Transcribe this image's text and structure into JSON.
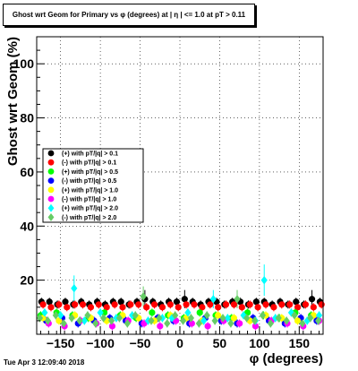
{
  "title": "Ghost wrt Geom for Primary vs φ (degrees) at | η | <= 1.0 at pT > 0.11",
  "timestamp": "Tue Apr  3 12:09:40 2018",
  "colors": {
    "black": "#000000",
    "red": "#ff0000",
    "green": "#00ff00",
    "blue": "#0000ff",
    "yellow": "#ffff00",
    "magenta": "#ff00ff",
    "cyan": "#00ffff",
    "lightgreen": "#66cc66"
  },
  "chart_data": {
    "type": "scatter",
    "xlabel": "φ (degrees)",
    "ylabel": "Ghost wrt Geom (%)",
    "xlim": [
      -180,
      180
    ],
    "ylim": [
      0,
      110
    ],
    "xticks": [
      -150,
      -100,
      -50,
      0,
      50,
      100,
      150
    ],
    "yticks": [
      20,
      40,
      60,
      80,
      100
    ],
    "grid": true,
    "legend_position": "middle-left",
    "series": [
      {
        "name": "(+) with pT/|q| > 0.1",
        "color": "#000000",
        "marker": "circle",
        "points": [
          [
            -174,
            12
          ],
          [
            -164,
            12
          ],
          [
            -154,
            11
          ],
          [
            -144,
            12
          ],
          [
            -134,
            11
          ],
          [
            -124,
            12
          ],
          [
            -114,
            11
          ],
          [
            -104,
            12
          ],
          [
            -94,
            11
          ],
          [
            -84,
            12
          ],
          [
            -74,
            12
          ],
          [
            -64,
            11
          ],
          [
            -54,
            12
          ],
          [
            -44,
            13
          ],
          [
            -34,
            12
          ],
          [
            -24,
            11
          ],
          [
            -14,
            12
          ],
          [
            -4,
            12
          ],
          [
            6,
            13
          ],
          [
            16,
            12
          ],
          [
            26,
            11
          ],
          [
            36,
            12
          ],
          [
            46,
            12
          ],
          [
            56,
            11
          ],
          [
            66,
            12
          ],
          [
            76,
            12
          ],
          [
            86,
            11
          ],
          [
            96,
            12
          ],
          [
            106,
            12
          ],
          [
            116,
            11
          ],
          [
            126,
            12
          ],
          [
            136,
            11
          ],
          [
            146,
            12
          ],
          [
            156,
            11
          ],
          [
            166,
            13
          ],
          [
            176,
            12
          ]
        ]
      },
      {
        "name": "(-) with pT/|q| > 0.1",
        "color": "#ff0000",
        "marker": "circle",
        "points": [
          [
            -172,
            11
          ],
          [
            -162,
            10
          ],
          [
            -152,
            11
          ],
          [
            -142,
            10
          ],
          [
            -132,
            11
          ],
          [
            -122,
            11
          ],
          [
            -112,
            10
          ],
          [
            -102,
            11
          ],
          [
            -92,
            10
          ],
          [
            -82,
            11
          ],
          [
            -72,
            10
          ],
          [
            -62,
            11
          ],
          [
            -52,
            11
          ],
          [
            -42,
            10
          ],
          [
            -32,
            11
          ],
          [
            -22,
            10
          ],
          [
            -12,
            11
          ],
          [
            -2,
            10
          ],
          [
            8,
            11
          ],
          [
            18,
            11
          ],
          [
            28,
            10
          ],
          [
            38,
            11
          ],
          [
            48,
            10
          ],
          [
            58,
            11
          ],
          [
            68,
            11
          ],
          [
            78,
            10
          ],
          [
            88,
            11
          ],
          [
            98,
            10
          ],
          [
            108,
            11
          ],
          [
            118,
            10
          ],
          [
            128,
            11
          ],
          [
            138,
            11
          ],
          [
            148,
            10
          ],
          [
            158,
            11
          ],
          [
            168,
            10
          ],
          [
            178,
            11
          ]
        ]
      },
      {
        "name": "(+) with pT/|q| > 0.5",
        "color": "#00ff00",
        "marker": "circle",
        "points": [
          [
            -175,
            7
          ],
          [
            -155,
            8
          ],
          [
            -135,
            7
          ],
          [
            -115,
            6
          ],
          [
            -95,
            8
          ],
          [
            -75,
            7
          ],
          [
            -55,
            6
          ],
          [
            -35,
            8
          ],
          [
            -15,
            7
          ],
          [
            5,
            6
          ],
          [
            25,
            8
          ],
          [
            45,
            7
          ],
          [
            65,
            6
          ],
          [
            85,
            8
          ],
          [
            105,
            7
          ],
          [
            125,
            6
          ],
          [
            145,
            8
          ],
          [
            165,
            7
          ]
        ]
      },
      {
        "name": "(-) with pT/|q| > 0.5",
        "color": "#0000ff",
        "marker": "circle",
        "points": [
          [
            -168,
            5
          ],
          [
            -148,
            6
          ],
          [
            -128,
            4
          ],
          [
            -108,
            5
          ],
          [
            -88,
            6
          ],
          [
            -68,
            5
          ],
          [
            -48,
            4
          ],
          [
            -28,
            6
          ],
          [
            -8,
            5
          ],
          [
            12,
            4
          ],
          [
            32,
            6
          ],
          [
            52,
            5
          ],
          [
            72,
            4
          ],
          [
            92,
            6
          ],
          [
            112,
            5
          ],
          [
            132,
            4
          ],
          [
            152,
            6
          ],
          [
            172,
            5
          ]
        ]
      },
      {
        "name": "(+) with pT/|q| > 1.0",
        "color": "#ffff00",
        "marker": "circle",
        "points": [
          [
            -172,
            6
          ],
          [
            -152,
            5
          ],
          [
            -132,
            7
          ],
          [
            -112,
            6
          ],
          [
            -92,
            5
          ],
          [
            -72,
            7
          ],
          [
            -52,
            6
          ],
          [
            -32,
            5
          ],
          [
            -12,
            7
          ],
          [
            8,
            6
          ],
          [
            28,
            5
          ],
          [
            48,
            7
          ],
          [
            68,
            6
          ],
          [
            88,
            5
          ],
          [
            108,
            7
          ],
          [
            128,
            6
          ],
          [
            148,
            5
          ],
          [
            168,
            7
          ]
        ]
      },
      {
        "name": "(-) with pT/|q| > 1.0",
        "color": "#ff00ff",
        "marker": "circle",
        "points": [
          [
            -165,
            4
          ],
          [
            -145,
            3
          ],
          [
            -125,
            5
          ],
          [
            -105,
            4
          ],
          [
            -85,
            3
          ],
          [
            -65,
            5
          ],
          [
            -45,
            4
          ],
          [
            -25,
            3
          ],
          [
            -5,
            5
          ],
          [
            15,
            4
          ],
          [
            35,
            3
          ],
          [
            55,
            5
          ],
          [
            75,
            4
          ],
          [
            95,
            3
          ],
          [
            115,
            5
          ],
          [
            135,
            4
          ],
          [
            155,
            3
          ],
          [
            175,
            5
          ]
        ]
      },
      {
        "name": "(+) with pT/|q| > 2.0",
        "color": "#00ffff",
        "marker": "diamond",
        "points": [
          [
            -170,
            8
          ],
          [
            -150,
            7
          ],
          [
            -133,
            17
          ],
          [
            -120,
            5
          ],
          [
            -100,
            8
          ],
          [
            -80,
            6
          ],
          [
            -60,
            7
          ],
          [
            -40,
            5
          ],
          [
            -22,
            6
          ],
          [
            -10,
            6
          ],
          [
            10,
            8
          ],
          [
            30,
            5
          ],
          [
            42,
            13
          ],
          [
            60,
            6
          ],
          [
            80,
            7
          ],
          [
            95,
            5
          ],
          [
            106,
            20
          ],
          [
            120,
            6
          ],
          [
            140,
            8
          ],
          [
            160,
            5
          ],
          [
            175,
            7
          ]
        ]
      },
      {
        "name": "(-) with pT/|q| > 2.0",
        "color": "#66cc66",
        "marker": "diamond",
        "points": [
          [
            -176,
            6
          ],
          [
            -166,
            5
          ],
          [
            -156,
            7
          ],
          [
            -146,
            4
          ],
          [
            -136,
            6
          ],
          [
            -126,
            5
          ],
          [
            -116,
            7
          ],
          [
            -106,
            4
          ],
          [
            -96,
            6
          ],
          [
            -86,
            5
          ],
          [
            -76,
            6
          ],
          [
            -66,
            4
          ],
          [
            -56,
            7
          ],
          [
            -46,
            14
          ],
          [
            -36,
            5
          ],
          [
            -26,
            6
          ],
          [
            -16,
            4
          ],
          [
            -6,
            7
          ],
          [
            4,
            5
          ],
          [
            14,
            6
          ],
          [
            24,
            4
          ],
          [
            34,
            7
          ],
          [
            44,
            5
          ],
          [
            54,
            6
          ],
          [
            64,
            4
          ],
          [
            72,
            13
          ],
          [
            84,
            6
          ],
          [
            94,
            5
          ],
          [
            104,
            7
          ],
          [
            114,
            4
          ],
          [
            124,
            6
          ],
          [
            134,
            5
          ],
          [
            144,
            7
          ],
          [
            154,
            4
          ],
          [
            164,
            6
          ],
          [
            174,
            5
          ]
        ]
      }
    ]
  }
}
